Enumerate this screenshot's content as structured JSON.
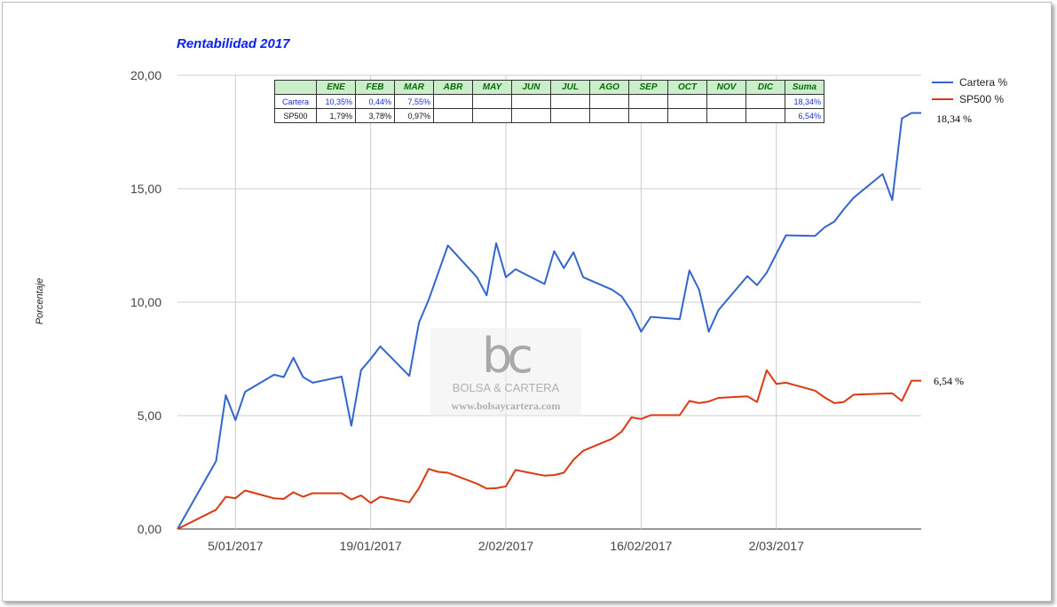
{
  "chart_data": {
    "type": "line",
    "title": "Rentabilidad 2017",
    "ylabel": "Porcentaje",
    "xlabel": "",
    "ylim": [
      0,
      20
    ],
    "yticks": [
      "0,00",
      "5,00",
      "10,00",
      "15,00",
      "20,00"
    ],
    "xtick_labels": [
      "5/01/2017",
      "19/01/2017",
      "2/02/2017",
      "16/02/2017",
      "2/03/2017"
    ],
    "xtick_dates": [
      "2017-01-05",
      "2017-01-19",
      "2017-02-02",
      "2017-02-16",
      "2017-03-02"
    ],
    "xlim": [
      "2016-12-30",
      "2017-03-17"
    ],
    "grid": true,
    "legend_position": "top-right",
    "series": [
      {
        "name": "Cartera %",
        "color": "#3366cc",
        "end_label": "18,34 %",
        "x": [
          "2016-12-30",
          "2017-01-03",
          "2017-01-04",
          "2017-01-05",
          "2017-01-06",
          "2017-01-09",
          "2017-01-10",
          "2017-01-11",
          "2017-01-12",
          "2017-01-13",
          "2017-01-16",
          "2017-01-17",
          "2017-01-18",
          "2017-01-19",
          "2017-01-20",
          "2017-01-23",
          "2017-01-24",
          "2017-01-25",
          "2017-01-27",
          "2017-01-30",
          "2017-01-31",
          "2017-02-01",
          "2017-02-02",
          "2017-02-03",
          "2017-02-06",
          "2017-02-07",
          "2017-02-08",
          "2017-02-09",
          "2017-02-10",
          "2017-02-13",
          "2017-02-14",
          "2017-02-15",
          "2017-02-16",
          "2017-02-17",
          "2017-02-20",
          "2017-02-21",
          "2017-02-22",
          "2017-02-23",
          "2017-02-24",
          "2017-02-27",
          "2017-02-28",
          "2017-03-01",
          "2017-03-03",
          "2017-03-06",
          "2017-03-07",
          "2017-03-08",
          "2017-03-09",
          "2017-03-10",
          "2017-03-13",
          "2017-03-14",
          "2017-03-15",
          "2017-03-16",
          "2017-03-17"
        ],
        "y": [
          0.0,
          3.0,
          5.9,
          4.8,
          6.05,
          6.8,
          6.7,
          7.55,
          6.7,
          6.45,
          6.72,
          4.55,
          7.0,
          7.5,
          8.05,
          6.75,
          9.1,
          10.1,
          12.5,
          11.1,
          10.3,
          12.6,
          11.1,
          11.45,
          10.8,
          12.25,
          11.5,
          12.2,
          11.1,
          10.55,
          10.25,
          9.6,
          8.7,
          9.35,
          9.25,
          11.4,
          10.55,
          8.7,
          9.65,
          11.15,
          10.75,
          11.3,
          12.95,
          12.92,
          13.3,
          13.55,
          14.1,
          14.6,
          15.65,
          14.5,
          18.1,
          18.34,
          18.34
        ]
      },
      {
        "name": "SP500 %",
        "color": "#dc3912",
        "end_label": "6,54 %",
        "x": [
          "2016-12-30",
          "2017-01-03",
          "2017-01-04",
          "2017-01-05",
          "2017-01-06",
          "2017-01-09",
          "2017-01-10",
          "2017-01-11",
          "2017-01-12",
          "2017-01-13",
          "2017-01-16",
          "2017-01-17",
          "2017-01-18",
          "2017-01-19",
          "2017-01-20",
          "2017-01-23",
          "2017-01-24",
          "2017-01-25",
          "2017-01-26",
          "2017-01-27",
          "2017-01-30",
          "2017-01-31",
          "2017-02-01",
          "2017-02-02",
          "2017-02-03",
          "2017-02-06",
          "2017-02-07",
          "2017-02-08",
          "2017-02-09",
          "2017-02-10",
          "2017-02-13",
          "2017-02-14",
          "2017-02-15",
          "2017-02-16",
          "2017-02-17",
          "2017-02-20",
          "2017-02-21",
          "2017-02-22",
          "2017-02-23",
          "2017-02-24",
          "2017-02-27",
          "2017-02-28",
          "2017-03-01",
          "2017-03-02",
          "2017-03-03",
          "2017-03-06",
          "2017-03-07",
          "2017-03-08",
          "2017-03-09",
          "2017-03-10",
          "2017-03-13",
          "2017-03-14",
          "2017-03-15",
          "2017-03-16",
          "2017-03-17"
        ],
        "y": [
          0.0,
          0.85,
          1.42,
          1.36,
          1.7,
          1.35,
          1.33,
          1.62,
          1.42,
          1.58,
          1.58,
          1.3,
          1.48,
          1.15,
          1.42,
          1.18,
          1.8,
          2.65,
          2.52,
          2.48,
          2.0,
          1.78,
          1.8,
          1.88,
          2.6,
          2.35,
          2.38,
          2.48,
          3.05,
          3.45,
          3.98,
          4.3,
          4.92,
          4.85,
          5.02,
          5.02,
          5.65,
          5.55,
          5.62,
          5.78,
          5.85,
          5.6,
          7.0,
          6.4,
          6.45,
          6.1,
          5.8,
          5.55,
          5.6,
          5.92,
          5.97,
          5.98,
          5.65,
          6.54,
          6.54
        ]
      }
    ]
  },
  "summary_table": {
    "headers": [
      "",
      "ENE",
      "FEB",
      "MAR",
      "ABR",
      "MAY",
      "JUN",
      "JUL",
      "AGO",
      "SEP",
      "OCT",
      "NOV",
      "DIC",
      "Suma"
    ],
    "rows": [
      {
        "label": "Cartera",
        "cells": [
          "10,35%",
          "0,44%",
          "7,55%",
          "",
          "",
          "",
          "",
          "",
          "",
          "",
          "",
          "",
          "18,34%"
        ]
      },
      {
        "label": "SP500",
        "cells": [
          "1,79%",
          "3,78%",
          "0,97%",
          "",
          "",
          "",
          "",
          "",
          "",
          "",
          "",
          "",
          "6,54%"
        ]
      }
    ]
  },
  "watermark": {
    "logo": "bc",
    "brand": "BOLSA & CARTERA",
    "url": "www.bolsaycartera.com"
  },
  "colors": {
    "cartera": "#3366cc",
    "sp500": "#dc3912",
    "table_header_bg": "#c9eec9",
    "title": "#0a22e8"
  }
}
